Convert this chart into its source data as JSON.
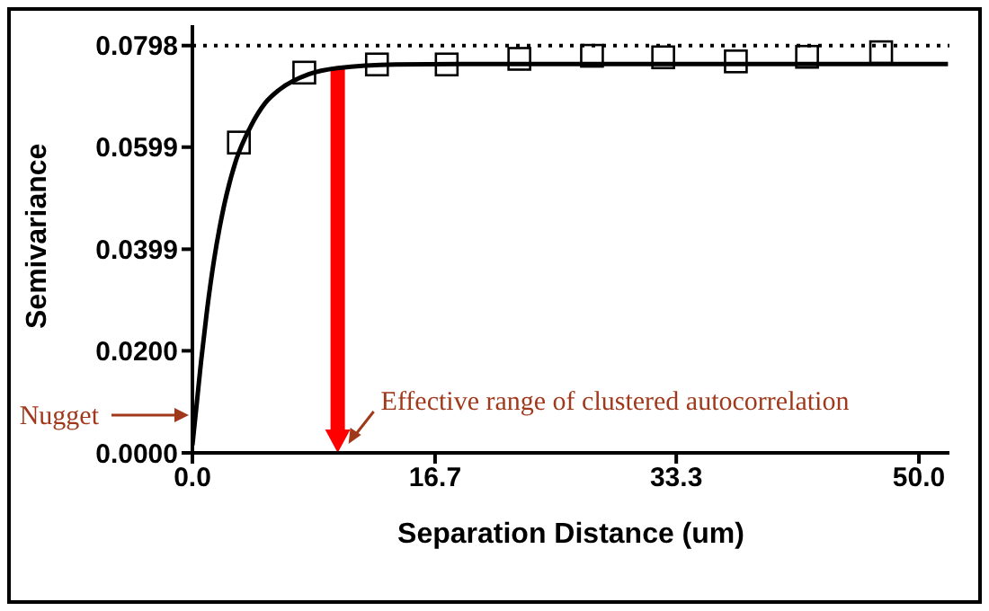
{
  "chart_data": {
    "type": "scatter",
    "xlabel": "Separation Distance (um)",
    "ylabel": "Semivariance",
    "xlim": [
      0,
      52.1
    ],
    "ylim": [
      0,
      0.0838
    ],
    "xticks": [
      {
        "value": 0,
        "label": "0.0"
      },
      {
        "value": 16.7,
        "label": "16.7"
      },
      {
        "value": 33.3,
        "label": "33.3"
      },
      {
        "value": 50,
        "label": "50.0"
      }
    ],
    "yticks": [
      {
        "value": 0,
        "label": "0.0000"
      },
      {
        "value": 0.02,
        "label": "0.0200"
      },
      {
        "value": 0.0399,
        "label": "0.0399"
      },
      {
        "value": 0.0599,
        "label": "0.0599"
      },
      {
        "value": 0.0798,
        "label": "0.0798"
      }
    ],
    "series": [
      {
        "marker": "square",
        "color": "#000000",
        "x": [
          3.2,
          7.7,
          12.7,
          17.5,
          22.5,
          27.5,
          32.4,
          37.4,
          42.3,
          47.4
        ],
        "values": [
          0.0608,
          0.0745,
          0.0761,
          0.0761,
          0.0772,
          0.0778,
          0.0775,
          0.0767,
          0.0776,
          0.0785
        ]
      },
      {
        "type": "line",
        "marker": "none",
        "color": "#000000",
        "x": [
          0,
          0.3,
          0.6,
          1,
          1.5,
          2,
          3,
          4,
          5,
          6,
          8,
          10,
          14,
          20,
          30,
          40,
          52
        ],
        "values": [
          0.0015,
          0.0097,
          0.018,
          0.0278,
          0.038,
          0.046,
          0.0573,
          0.0639,
          0.0685,
          0.0712,
          0.0742,
          0.0754,
          0.0761,
          0.0762,
          0.0762,
          0.0762,
          0.0762
        ]
      }
    ],
    "ref_lines": [
      {
        "axis": "y",
        "value": 0.0798,
        "color": "#000000",
        "line_style": "dotted"
      },
      {
        "axis": "x",
        "value": 10,
        "color": "#ff0000",
        "line_style": "solid"
      }
    ],
    "annotations": [
      {
        "text": "Nugget",
        "x": 0,
        "y": 0.0074
      },
      "Effective range of clustered autocorrelation"
    ]
  }
}
